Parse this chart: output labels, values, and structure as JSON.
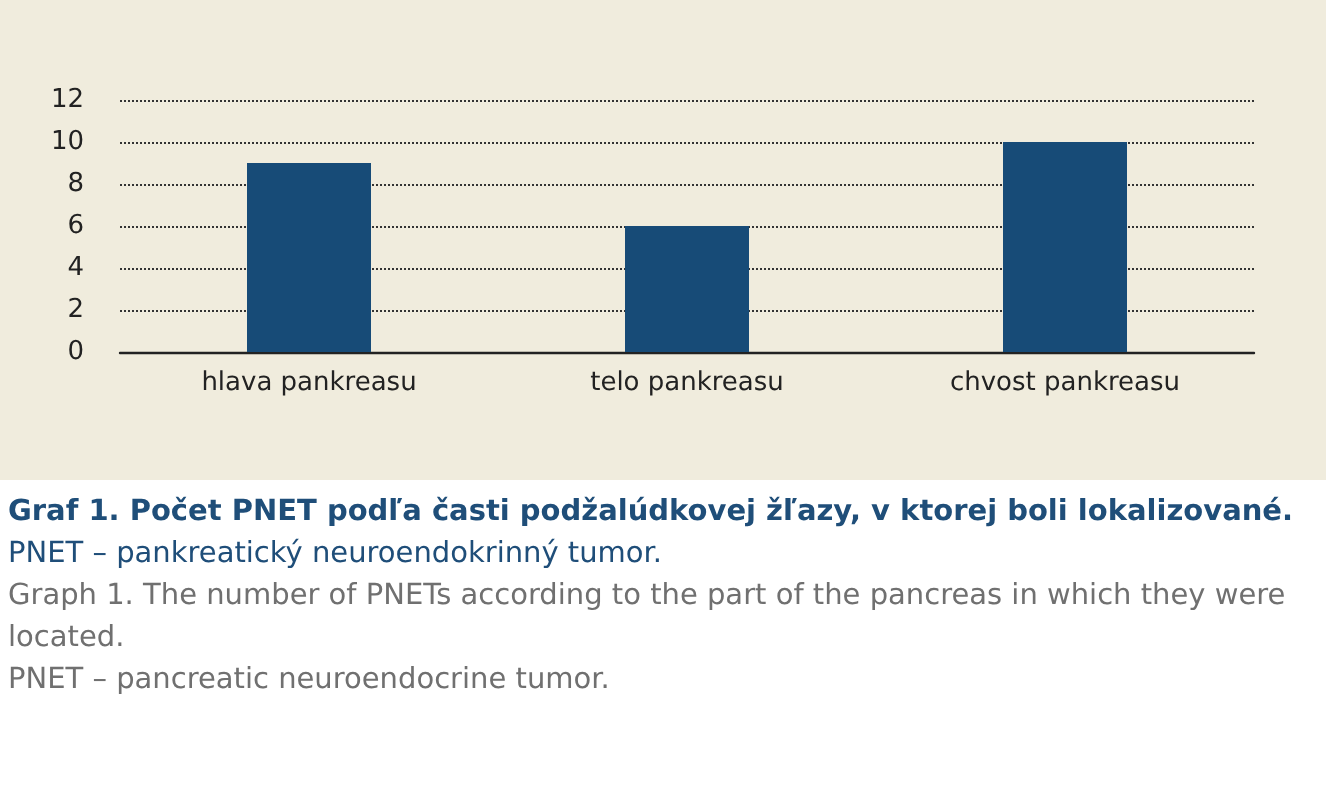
{
  "chart_data": {
    "type": "bar",
    "title": "Graf 1. Počet PNET podľa časti podžalúdkovej žľazy, v ktorej boli lokalizované.",
    "annotations": [
      "PNET – pankreatický neuroendokrinný tumor.",
      "Graph 1. The number of PNETs according to the part of the pancreas in which they were located.",
      "PNET – pancreatic neuroendocrine tumor."
    ],
    "categories": [
      "hlava pankreasu",
      "telo pankreasu",
      "chvost pankreasu"
    ],
    "values": [
      9,
      6,
      10
    ],
    "color": "#174b77",
    "ylim": [
      0,
      12
    ],
    "yticks": [
      0,
      2,
      4,
      6,
      8,
      10,
      12
    ],
    "grid": "y"
  }
}
